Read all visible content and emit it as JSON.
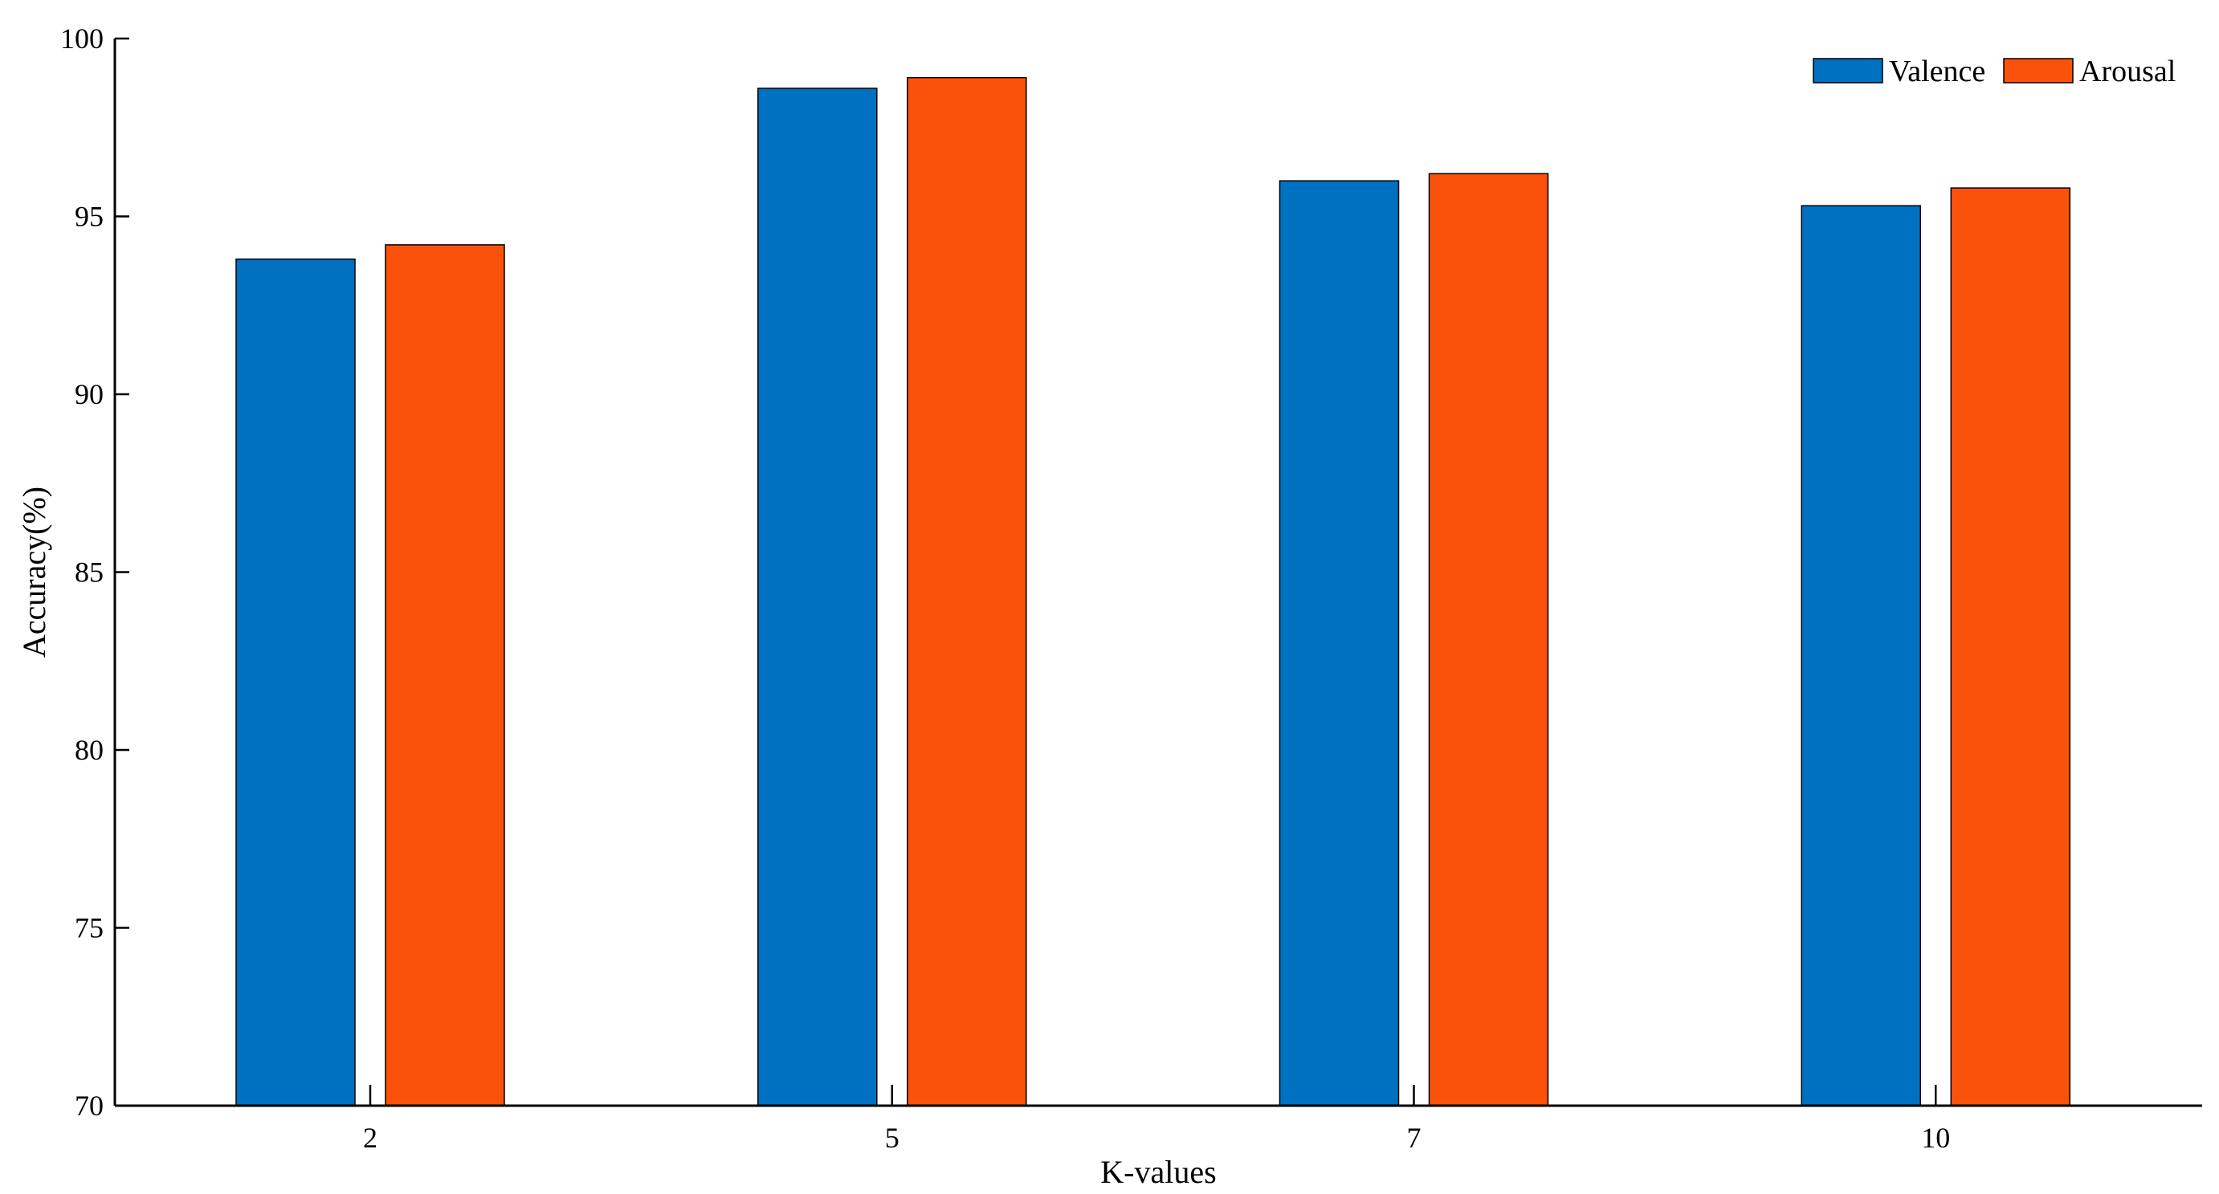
{
  "chart_data": {
    "type": "bar",
    "categories": [
      "2",
      "5",
      "7",
      "10"
    ],
    "series": [
      {
        "name": "Valence",
        "values": [
          93.8,
          98.6,
          96.0,
          95.3
        ],
        "color": "#0070C0"
      },
      {
        "name": "Arousal",
        "values": [
          94.2,
          98.9,
          96.2,
          95.8
        ],
        "color": "#FA520A"
      }
    ],
    "title": "",
    "xlabel": "K-values",
    "ylabel": "Accuracy(%)",
    "ylim": [
      70,
      100
    ],
    "yticks": [
      "70",
      "75",
      "80",
      "85",
      "90",
      "95",
      "100"
    ],
    "grid": false,
    "legend_position": "top-right"
  }
}
